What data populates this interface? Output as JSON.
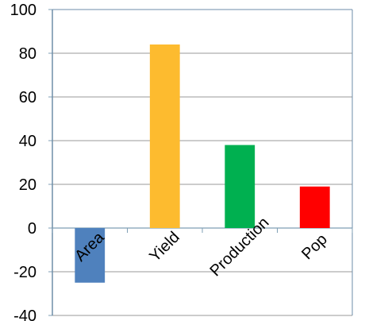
{
  "chart_data": {
    "type": "bar",
    "categories": [
      "Area",
      "Yield",
      "Production",
      "Pop"
    ],
    "values": [
      -25,
      84,
      38,
      19
    ],
    "colors": [
      "#4f81bd",
      "#fdbb2f",
      "#00b050",
      "#ff0000"
    ],
    "ylim": [
      -40,
      100
    ],
    "yticks": [
      -40,
      -20,
      0,
      20,
      40,
      60,
      80,
      100
    ],
    "ytick_labels": [
      "-40",
      "-20",
      "0",
      "20",
      "40",
      "60",
      "80",
      "100"
    ],
    "grid": true,
    "title": "",
    "xlabel": "",
    "ylabel": ""
  }
}
